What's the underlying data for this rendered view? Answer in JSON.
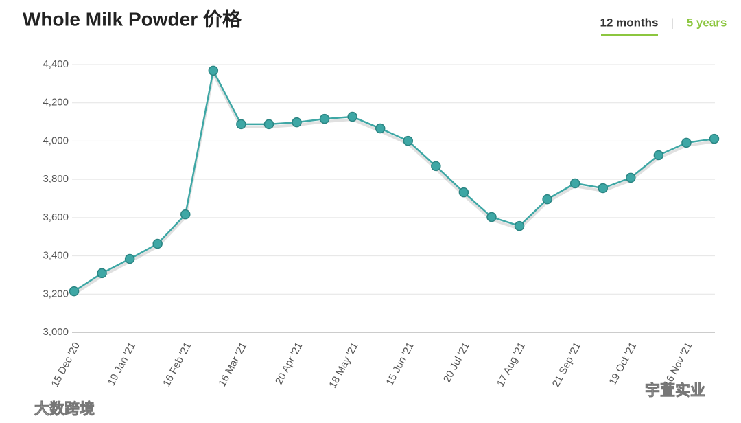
{
  "chart_data": {
    "type": "line",
    "title": "Whole Milk Powder 价格",
    "tabs": [
      "12 months",
      "|",
      "5 years"
    ],
    "watermarks": [
      "大数跨境",
      "宇萱实业"
    ],
    "categories": [
      "15 Dec '20",
      null,
      "19 Jan '21",
      null,
      "16 Feb '21",
      null,
      "16 Mar '21",
      null,
      "20 Apr '21",
      null,
      "18 May '21",
      null,
      "15 Jun '21",
      null,
      "20 Jul '21",
      null,
      "17 Aug '21",
      null,
      "21 Sep '21",
      null,
      "19 Oct '21",
      null,
      "16 Nov '21",
      null
    ],
    "series": [
      {
        "name": "Whole Milk Powder",
        "color": "#3ea7a5",
        "values": [
          3215,
          3309,
          3384,
          3463,
          3617,
          4368,
          4088,
          4088,
          4098,
          4116,
          4127,
          4066,
          4001,
          3869,
          3732,
          3603,
          3556,
          3696,
          3779,
          3754,
          3808,
          3926,
          3991,
          4012
        ]
      }
    ],
    "ylim": [
      3000,
      4400
    ],
    "yticks": [
      {
        "value": 3000,
        "label": "3,000"
      },
      {
        "value": 3200,
        "label": "3,200"
      },
      {
        "value": 3400,
        "label": "3,400"
      },
      {
        "value": 3600,
        "label": "3,600"
      },
      {
        "value": 3800,
        "label": "3,800"
      },
      {
        "value": 4000,
        "label": "4,000"
      },
      {
        "value": 4200,
        "label": "4,200"
      },
      {
        "value": 4400,
        "label": "4,400"
      }
    ],
    "grid": true
  }
}
